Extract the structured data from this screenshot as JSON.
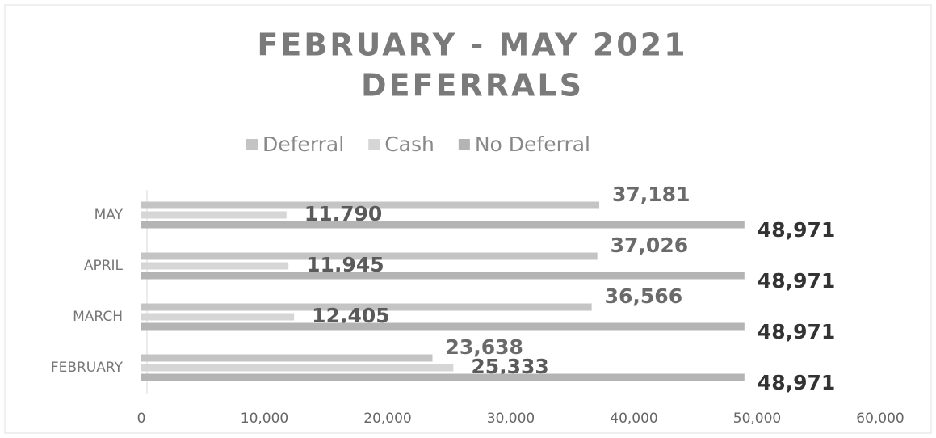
{
  "chart_data": {
    "type": "hbar",
    "title": [
      "FEBRUARY - MAY 2021",
      "DEFERRALS"
    ],
    "categories": [
      "FEBRUARY",
      "MARCH",
      "APRIL",
      "MAY"
    ],
    "series": [
      {
        "name": "Deferral",
        "color": "#c4c4c4",
        "values": [
          23638,
          36566,
          37026,
          37181
        ],
        "value_labels": [
          "23,638",
          "36,566",
          "37,026",
          "37,181"
        ]
      },
      {
        "name": "Cash",
        "color": "#d6d6d6",
        "values": [
          25333,
          12405,
          11945,
          11790
        ],
        "value_labels": [
          "25,333",
          "12,405",
          "11,945",
          "11,790"
        ]
      },
      {
        "name": "No Deferral",
        "color": "#b4b4b4",
        "values": [
          48971,
          48971,
          48971,
          48971
        ],
        "value_labels": [
          "48,971",
          "48,971",
          "48,971",
          "48,971"
        ]
      }
    ],
    "xlim": [
      0,
      60000
    ],
    "xticks": [
      0,
      {
        "value": 10000,
        "label": "10,000"
      },
      {
        "value": 20000,
        "label": "20,000"
      },
      {
        "value": 30000,
        "label": "30,000"
      },
      {
        "value": 40000,
        "label": "40,000"
      },
      {
        "value": 50000,
        "label": "50,000"
      },
      {
        "value": 60000,
        "label": "60,000"
      }
    ],
    "legend": "top",
    "grid": false
  }
}
